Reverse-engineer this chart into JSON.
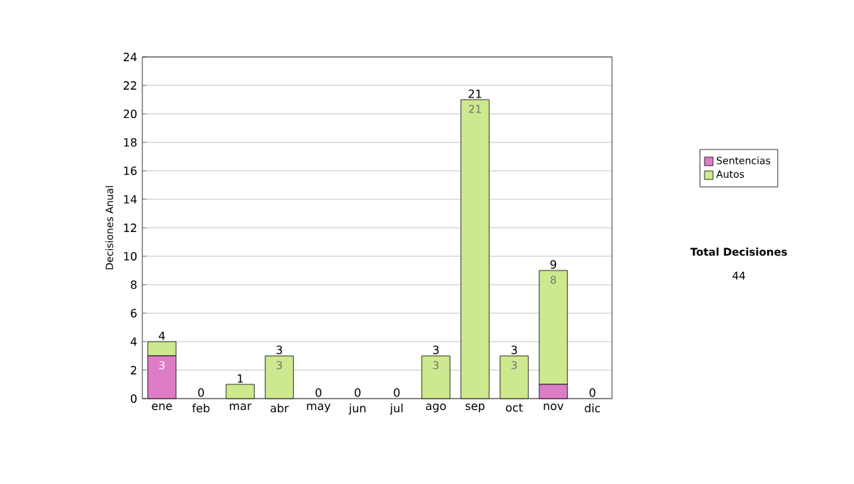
{
  "chart_data": {
    "type": "bar",
    "stacked": true,
    "ylabel": "Decisiones Anual",
    "categories": [
      "ene",
      "feb",
      "mar",
      "abr",
      "may",
      "jun",
      "jul",
      "ago",
      "sep",
      "oct",
      "nov",
      "dic"
    ],
    "series": [
      {
        "name": "Sentencias",
        "color": "#dd7dc6",
        "values": [
          3,
          0,
          0,
          0,
          0,
          0,
          0,
          0,
          0,
          0,
          1,
          0
        ],
        "value_labels": [
          "3",
          null,
          null,
          null,
          null,
          null,
          null,
          null,
          null,
          null,
          null,
          null
        ]
      },
      {
        "name": "Autos",
        "color": "#cde88e",
        "values": [
          1,
          0,
          1,
          3,
          0,
          0,
          0,
          3,
          21,
          3,
          8,
          0
        ],
        "value_labels": [
          null,
          null,
          null,
          "3",
          null,
          null,
          null,
          "3",
          "21",
          "3",
          "8",
          null
        ]
      }
    ],
    "totals": [
      "4",
      "0",
      "1",
      "3",
      "0",
      "0",
      "0",
      "3",
      "21",
      "3",
      "9",
      "0"
    ],
    "ylim": [
      0,
      24
    ],
    "yticks": [
      0,
      2,
      4,
      6,
      8,
      10,
      12,
      14,
      16,
      18,
      20,
      22,
      24
    ],
    "grid": "y",
    "legend": "right",
    "annotations": [
      "Total Decisiones",
      "44"
    ]
  }
}
